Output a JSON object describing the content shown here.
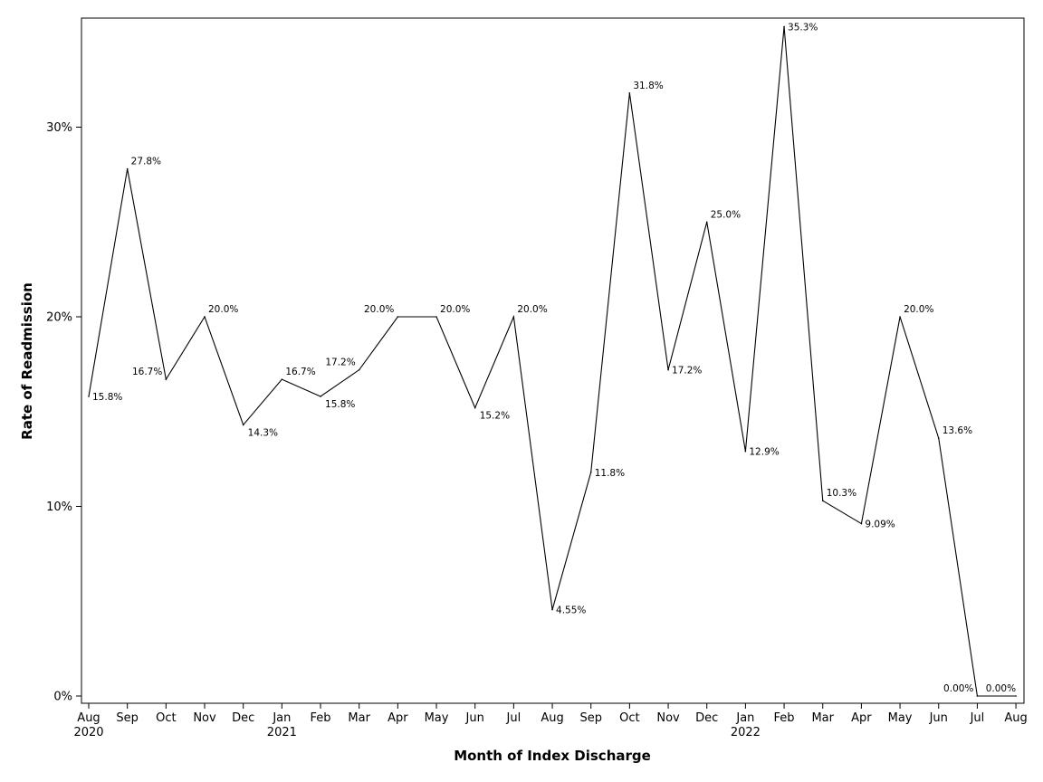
{
  "chart_data": {
    "type": "line",
    "title": "",
    "xlabel": "Month of Index Discharge",
    "ylabel": "Rate of Readmission",
    "ylim": [
      0,
      36
    ],
    "yticks": [
      0,
      10,
      20,
      30
    ],
    "ytick_labels": [
      "0%",
      "10%",
      "20%",
      "30%"
    ],
    "grid": false,
    "legend": "none",
    "x": [
      {
        "month": "Aug",
        "year": "2020"
      },
      {
        "month": "Sep",
        "year": ""
      },
      {
        "month": "Oct",
        "year": ""
      },
      {
        "month": "Nov",
        "year": ""
      },
      {
        "month": "Dec",
        "year": ""
      },
      {
        "month": "Jan",
        "year": "2021"
      },
      {
        "month": "Feb",
        "year": ""
      },
      {
        "month": "Mar",
        "year": ""
      },
      {
        "month": "Apr",
        "year": ""
      },
      {
        "month": "May",
        "year": ""
      },
      {
        "month": "Jun",
        "year": ""
      },
      {
        "month": "Jul",
        "year": ""
      },
      {
        "month": "Aug",
        "year": ""
      },
      {
        "month": "Sep",
        "year": ""
      },
      {
        "month": "Oct",
        "year": ""
      },
      {
        "month": "Nov",
        "year": ""
      },
      {
        "month": "Dec",
        "year": ""
      },
      {
        "month": "Jan",
        "year": "2022"
      },
      {
        "month": "Feb",
        "year": ""
      },
      {
        "month": "Mar",
        "year": ""
      },
      {
        "month": "Apr",
        "year": ""
      },
      {
        "month": "May",
        "year": ""
      },
      {
        "month": "Jun",
        "year": ""
      },
      {
        "month": "Jul",
        "year": ""
      },
      {
        "month": "Aug",
        "year": ""
      }
    ],
    "series": [
      {
        "name": "Rate of Readmission",
        "values": [
          15.8,
          27.8,
          16.7,
          20.0,
          14.3,
          16.7,
          15.8,
          17.2,
          20.0,
          20.0,
          15.2,
          20.0,
          4.55,
          11.8,
          31.8,
          17.2,
          25.0,
          12.9,
          35.3,
          10.3,
          9.09,
          20.0,
          13.6,
          0.0,
          0.0
        ],
        "labels": [
          "15.8%",
          "27.8%",
          "16.7%",
          "20.0%",
          "14.3%",
          "16.7%",
          "15.8%",
          "17.2%",
          "20.0%",
          "20.0%",
          "15.2%",
          "20.0%",
          "4.55%",
          "11.8%",
          "31.8%",
          "17.2%",
          "25.0%",
          "12.9%",
          "35.3%",
          "10.3%",
          "9.09%",
          "20.0%",
          "13.6%",
          "0.00%",
          "0.00%"
        ]
      }
    ]
  }
}
